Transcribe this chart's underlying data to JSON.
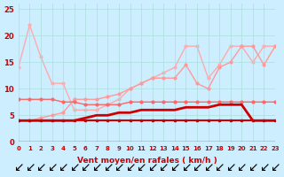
{
  "x": [
    0,
    1,
    2,
    3,
    4,
    5,
    6,
    7,
    8,
    9,
    10,
    11,
    12,
    13,
    14,
    15,
    16,
    17,
    18,
    19,
    20,
    21,
    22,
    23
  ],
  "line1": [
    4,
    4,
    4,
    4,
    4,
    4,
    4,
    4,
    4,
    4,
    4,
    4,
    4,
    4,
    4,
    4,
    4,
    4,
    4,
    4,
    4,
    4,
    4,
    4
  ],
  "line2": [
    4,
    4,
    4,
    4,
    4,
    4,
    4.5,
    5,
    5,
    5.5,
    5.5,
    6,
    6,
    6,
    6,
    6.5,
    6.5,
    6.5,
    7,
    7,
    7,
    4,
    4,
    4
  ],
  "line3": [
    8,
    8,
    8,
    8,
    7.5,
    7.5,
    7,
    7,
    7,
    7,
    7.5,
    7.5,
    7.5,
    7.5,
    7.5,
    7.5,
    7.5,
    7.5,
    7.5,
    7.5,
    7.5,
    7.5,
    7.5,
    7.5
  ],
  "line4": [
    4,
    4,
    4.5,
    5,
    5.5,
    8,
    8,
    8,
    8.5,
    9,
    10,
    11,
    12,
    12,
    12,
    14.5,
    11,
    10,
    14,
    15,
    18,
    18,
    14.5,
    18
  ],
  "line5": [
    14,
    22,
    16,
    11,
    11,
    6,
    6,
    6,
    7,
    8,
    10,
    11,
    12,
    13,
    14,
    18,
    18,
    12,
    14.5,
    18,
    18,
    15,
    18,
    18
  ],
  "bg_color": "#cceeff",
  "grid_color": "#aadddd",
  "line1_color": "#cc0000",
  "line2_color": "#cc0000",
  "line3_color": "#ff6666",
  "line4_color": "#ff9999",
  "line5_color": "#ffaaaa",
  "xlabel": "Vent moyen/en rafales ( km/h )",
  "ylim": [
    0,
    26
  ],
  "xlim": [
    0,
    23
  ],
  "yticks": [
    0,
    5,
    10,
    15,
    20,
    25
  ],
  "xticks": [
    0,
    1,
    2,
    3,
    4,
    5,
    6,
    7,
    8,
    9,
    10,
    11,
    12,
    13,
    14,
    15,
    16,
    17,
    18,
    19,
    20,
    21,
    22,
    23
  ]
}
